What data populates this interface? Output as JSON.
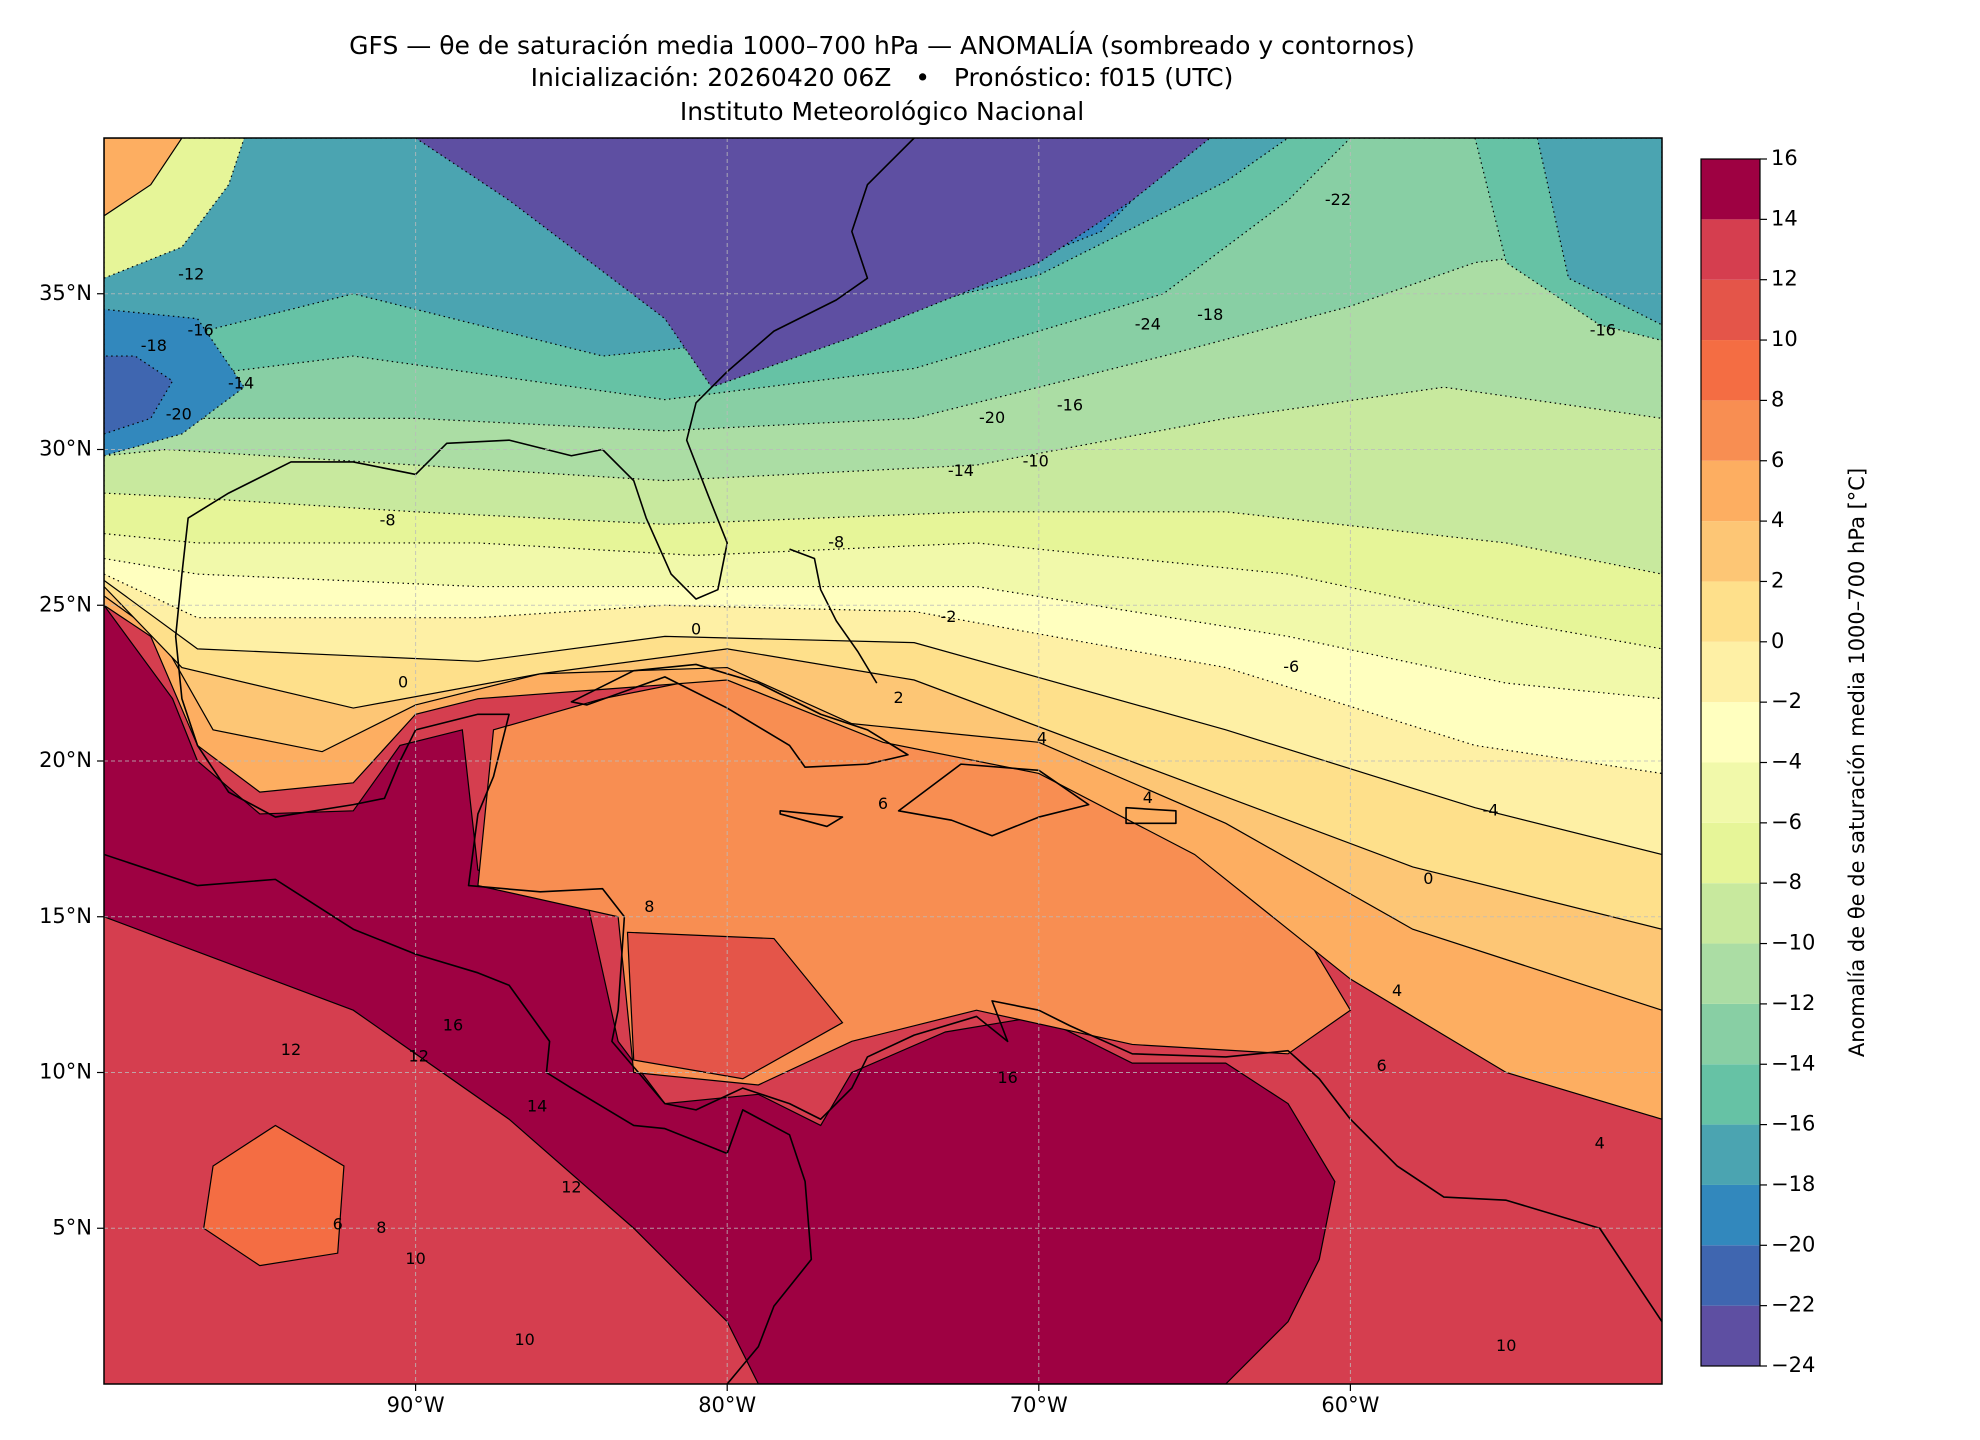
{
  "chart_data": {
    "type": "map",
    "title": "GFS — θe de saturación media 1000–700 hPa — ANOMALÍA (sombreado y contornos)",
    "subtitle": "Inicialización: 20260420 06Z   •   Pronóstico: f015 (UTC)",
    "institution": "Instituto Meteorológico Nacional",
    "xlim": [
      -100,
      -50
    ],
    "ylim": [
      0,
      40
    ],
    "xticks": [
      {
        "value": -90,
        "label": "90°W"
      },
      {
        "value": -80,
        "label": "80°W"
      },
      {
        "value": -70,
        "label": "70°W"
      },
      {
        "value": -60,
        "label": "60°W"
      }
    ],
    "yticks": [
      {
        "value": 5,
        "label": "5°N"
      },
      {
        "value": 10,
        "label": "10°N"
      },
      {
        "value": 15,
        "label": "15°N"
      },
      {
        "value": 20,
        "label": "20°N"
      },
      {
        "value": 25,
        "label": "25°N"
      },
      {
        "value": 30,
        "label": "30°N"
      },
      {
        "value": 35,
        "label": "35°N"
      }
    ],
    "grid": true,
    "colorbar": {
      "label": "Anomalía de θe de saturación media 1000–700 hPa [°C]",
      "levels": [
        -24,
        -22,
        -20,
        -18,
        -16,
        -14,
        -12,
        -10,
        -8,
        -6,
        -4,
        -2,
        0,
        2,
        4,
        6,
        8,
        10,
        12,
        14,
        16
      ],
      "colors": [
        "#5e4fa2",
        "#3f66b0",
        "#3288bd",
        "#4ba4b1",
        "#66c2a5",
        "#88cfa4",
        "#abdda4",
        "#c8e99e",
        "#e6f598",
        "#f1f9aa",
        "#ffffbf",
        "#fef0a5",
        "#fee08b",
        "#fdc675",
        "#fdae61",
        "#f88e52",
        "#f46d43",
        "#e45549",
        "#d53e4f",
        "#9e0142"
      ],
      "ticks": [
        {
          "value": -24,
          "label": "−24"
        },
        {
          "value": -22,
          "label": "−22"
        },
        {
          "value": -20,
          "label": "−20"
        },
        {
          "value": -18,
          "label": "−18"
        },
        {
          "value": -16,
          "label": "−16"
        },
        {
          "value": -14,
          "label": "−14"
        },
        {
          "value": -12,
          "label": "−12"
        },
        {
          "value": -10,
          "label": "−10"
        },
        {
          "value": -8,
          "label": "−8"
        },
        {
          "value": -6,
          "label": "−6"
        },
        {
          "value": -4,
          "label": "−4"
        },
        {
          "value": -2,
          "label": "−2"
        },
        0,
        2,
        4,
        6,
        8,
        10,
        12,
        14,
        16
      ]
    },
    "contour_labels": [
      {
        "lon": -90.9,
        "lat": 27.7,
        "value": -8
      },
      {
        "lon": -76.5,
        "lat": 27.0,
        "value": -8
      },
      {
        "lon": -72.9,
        "lat": 24.6,
        "value": -2
      },
      {
        "lon": -61.9,
        "lat": 23.0,
        "value": -6
      },
      {
        "lon": -55.5,
        "lat": 18.4,
        "value": -4
      },
      {
        "lon": -90.4,
        "lat": 22.5,
        "value": 0
      },
      {
        "lon": -81.0,
        "lat": 24.2,
        "value": 0
      },
      {
        "lon": -57.5,
        "lat": 16.2,
        "value": 0
      },
      {
        "lon": -74.5,
        "lat": 22.0,
        "value": 2
      },
      {
        "lon": -69.9,
        "lat": 20.7,
        "value": 4
      },
      {
        "lon": -66.5,
        "lat": 18.8,
        "value": 4
      },
      {
        "lon": -58.5,
        "lat": 12.6,
        "value": 4
      },
      {
        "lon": -52.0,
        "lat": 7.7,
        "value": 4
      },
      {
        "lon": -75.0,
        "lat": 18.6,
        "value": 6
      },
      {
        "lon": -59.0,
        "lat": 10.2,
        "value": 6
      },
      {
        "lon": -92.5,
        "lat": 5.1,
        "value": 6
      },
      {
        "lon": -82.5,
        "lat": 15.3,
        "value": 8
      },
      {
        "lon": -91.1,
        "lat": 5.0,
        "value": 8
      },
      {
        "lon": -90.0,
        "lat": 4.0,
        "value": 10
      },
      {
        "lon": -86.5,
        "lat": 1.4,
        "value": 10
      },
      {
        "lon": -55.0,
        "lat": 1.2,
        "value": 10
      },
      {
        "lon": -94.0,
        "lat": 10.7,
        "value": 12
      },
      {
        "lon": -89.9,
        "lat": 10.5,
        "value": 12
      },
      {
        "lon": -85.0,
        "lat": 6.3,
        "value": 12
      },
      {
        "lon": -86.1,
        "lat": 8.9,
        "value": 14
      },
      {
        "lon": -88.8,
        "lat": 11.5,
        "value": 16
      },
      {
        "lon": -71.0,
        "lat": 9.8,
        "value": 16
      },
      {
        "lon": -70.1,
        "lat": 29.6,
        "value": -10
      },
      {
        "lon": -72.5,
        "lat": 29.3,
        "value": -14
      },
      {
        "lon": -69.0,
        "lat": 31.4,
        "value": -16
      },
      {
        "lon": -71.5,
        "lat": 31.0,
        "value": -20
      },
      {
        "lon": -66.5,
        "lat": 34.0,
        "value": -24
      },
      {
        "lon": -64.5,
        "lat": 34.3,
        "value": -18
      },
      {
        "lon": -51.9,
        "lat": 33.8,
        "value": -16
      },
      {
        "lon": -60.4,
        "lat": 38.0,
        "value": -22
      },
      {
        "lon": -98.4,
        "lat": 33.3,
        "value": -18
      },
      {
        "lon": -96.9,
        "lat": 33.8,
        "value": -16
      },
      {
        "lon": -95.6,
        "lat": 32.1,
        "value": -14
      },
      {
        "lon": -97.2,
        "lat": 35.6,
        "value": -12
      },
      {
        "lon": -97.6,
        "lat": 31.1,
        "value": -20
      }
    ]
  }
}
